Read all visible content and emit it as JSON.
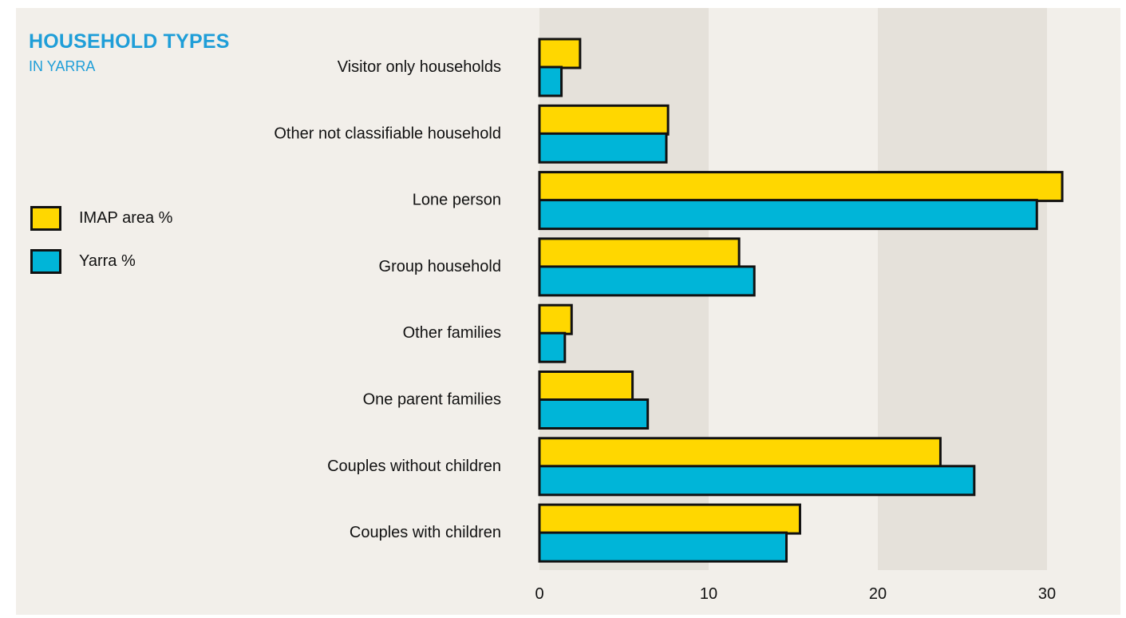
{
  "chart_data": {
    "type": "bar",
    "orientation": "horizontal",
    "title": "HOUSEHOLD TYPES",
    "subtitle": "IN YARRA",
    "categories": [
      "Visitor only households",
      "Other not classifiable household",
      "Lone person",
      "Group household",
      "Other families",
      "One parent families",
      "Couples without children",
      "Couples with children"
    ],
    "series": [
      {
        "name": "IMAP area %",
        "color": "#ffd700",
        "values": [
          2.4,
          7.6,
          30.9,
          11.8,
          1.9,
          5.5,
          23.7,
          15.4
        ]
      },
      {
        "name": "Yarra %",
        "color": "#00b5d8",
        "values": [
          1.3,
          7.5,
          29.4,
          12.7,
          1.5,
          6.4,
          25.7,
          14.6
        ]
      }
    ],
    "xlim": [
      0,
      30
    ],
    "xticks": [
      "0",
      "10",
      "20",
      "30"
    ],
    "grid": "alternating vertical bands",
    "legend": "left"
  },
  "colors": {
    "background": "#f2efea",
    "band": "#e5e1da",
    "title": "#1f9ed8",
    "outline": "#111111"
  }
}
